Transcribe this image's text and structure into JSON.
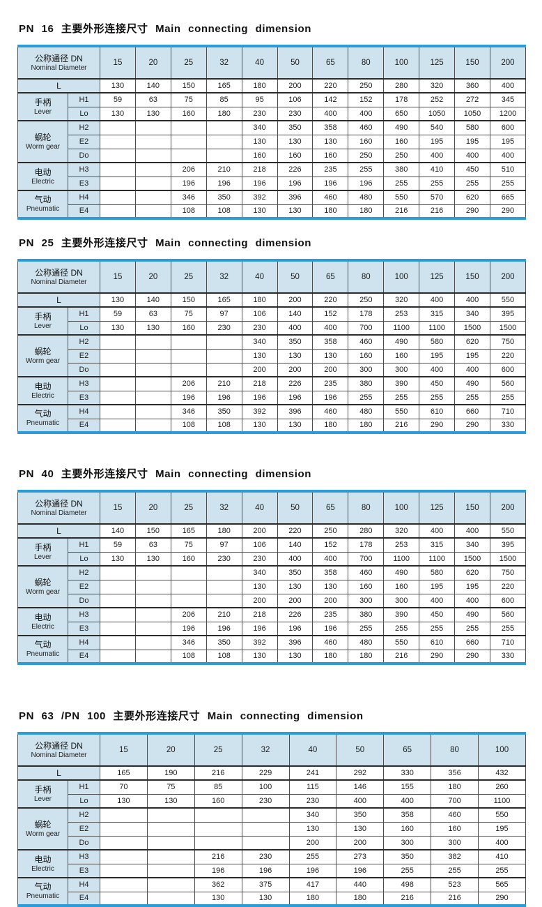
{
  "colors": {
    "accent_rule": "#2b9cd8",
    "header_fill": "#cfe3ee",
    "grid_line": "#4d4d4d",
    "text": "#141414"
  },
  "row_labels": {
    "dn_cn": "公称通径 DN",
    "dn_en": "Nominal Diameter",
    "l_label": "L",
    "groups": [
      {
        "cn": "手柄",
        "en": "Lever",
        "rows": [
          "H1",
          "Lo"
        ]
      },
      {
        "cn": "蜗轮",
        "en": "Worm gear",
        "rows": [
          "H2",
          "E2",
          "Do"
        ]
      },
      {
        "cn": "电动",
        "en": "Electric",
        "rows": [
          "H3",
          "E3"
        ]
      },
      {
        "cn": "气动",
        "en": "Pneumatic",
        "rows": [
          "H4",
          "E4"
        ]
      }
    ]
  },
  "tables": [
    {
      "title": "PN 16 主要外形连接尺寸 Main connecting dimension",
      "dn": [
        "15",
        "20",
        "25",
        "32",
        "40",
        "50",
        "65",
        "80",
        "100",
        "125",
        "150",
        "200"
      ],
      "rows": {
        "L": [
          "130",
          "140",
          "150",
          "165",
          "180",
          "200",
          "220",
          "250",
          "280",
          "320",
          "360",
          "400"
        ],
        "H1": [
          "59",
          "63",
          "75",
          "85",
          "95",
          "106",
          "142",
          "152",
          "178",
          "252",
          "272",
          "345"
        ],
        "Lo": [
          "130",
          "130",
          "160",
          "180",
          "230",
          "230",
          "400",
          "400",
          "650",
          "1050",
          "1050",
          "1200"
        ],
        "H2": [
          "",
          "",
          "",
          "",
          "340",
          "350",
          "358",
          "460",
          "490",
          "540",
          "580",
          "600"
        ],
        "E2": [
          "",
          "",
          "",
          "",
          "130",
          "130",
          "130",
          "160",
          "160",
          "195",
          "195",
          "195"
        ],
        "Do": [
          "",
          "",
          "",
          "",
          "160",
          "160",
          "160",
          "250",
          "250",
          "400",
          "400",
          "400"
        ],
        "H3": [
          "",
          "",
          "206",
          "210",
          "218",
          "226",
          "235",
          "255",
          "380",
          "410",
          "450",
          "510"
        ],
        "E3": [
          "",
          "",
          "196",
          "196",
          "196",
          "196",
          "196",
          "196",
          "255",
          "255",
          "255",
          "255"
        ],
        "H4": [
          "",
          "",
          "346",
          "350",
          "392",
          "396",
          "460",
          "480",
          "550",
          "570",
          "620",
          "665"
        ],
        "E4": [
          "",
          "",
          "108",
          "108",
          "130",
          "130",
          "180",
          "180",
          "216",
          "216",
          "290",
          "290"
        ]
      }
    },
    {
      "title": "PN 25 主要外形连接尺寸 Main connecting dimension",
      "dn": [
        "15",
        "20",
        "25",
        "32",
        "40",
        "50",
        "65",
        "80",
        "100",
        "125",
        "150",
        "200"
      ],
      "rows": {
        "L": [
          "130",
          "140",
          "150",
          "165",
          "180",
          "200",
          "220",
          "250",
          "320",
          "400",
          "400",
          "550"
        ],
        "H1": [
          "59",
          "63",
          "75",
          "97",
          "106",
          "140",
          "152",
          "178",
          "253",
          "315",
          "340",
          "395"
        ],
        "Lo": [
          "130",
          "130",
          "160",
          "230",
          "230",
          "400",
          "400",
          "700",
          "1100",
          "1100",
          "1500",
          "1500"
        ],
        "H2": [
          "",
          "",
          "",
          "",
          "340",
          "350",
          "358",
          "460",
          "490",
          "580",
          "620",
          "750"
        ],
        "E2": [
          "",
          "",
          "",
          "",
          "130",
          "130",
          "130",
          "160",
          "160",
          "195",
          "195",
          "220"
        ],
        "Do": [
          "",
          "",
          "",
          "",
          "200",
          "200",
          "200",
          "300",
          "300",
          "400",
          "400",
          "600"
        ],
        "H3": [
          "",
          "",
          "206",
          "210",
          "218",
          "226",
          "235",
          "380",
          "390",
          "450",
          "490",
          "560"
        ],
        "E3": [
          "",
          "",
          "196",
          "196",
          "196",
          "196",
          "196",
          "255",
          "255",
          "255",
          "255",
          "255"
        ],
        "H4": [
          "",
          "",
          "346",
          "350",
          "392",
          "396",
          "460",
          "480",
          "550",
          "610",
          "660",
          "710"
        ],
        "E4": [
          "",
          "",
          "108",
          "108",
          "130",
          "130",
          "180",
          "180",
          "216",
          "290",
          "290",
          "330"
        ]
      }
    },
    {
      "title": "PN 40 主要外形连接尺寸 Main connecting dimension",
      "dn": [
        "15",
        "20",
        "25",
        "32",
        "40",
        "50",
        "65",
        "80",
        "100",
        "125",
        "150",
        "200"
      ],
      "rows": {
        "L": [
          "140",
          "150",
          "165",
          "180",
          "200",
          "220",
          "250",
          "280",
          "320",
          "400",
          "400",
          "550"
        ],
        "H1": [
          "59",
          "63",
          "75",
          "97",
          "106",
          "140",
          "152",
          "178",
          "253",
          "315",
          "340",
          "395"
        ],
        "Lo": [
          "130",
          "130",
          "160",
          "230",
          "230",
          "400",
          "400",
          "700",
          "1100",
          "1100",
          "1500",
          "1500"
        ],
        "H2": [
          "",
          "",
          "",
          "",
          "340",
          "350",
          "358",
          "460",
          "490",
          "580",
          "620",
          "750"
        ],
        "E2": [
          "",
          "",
          "",
          "",
          "130",
          "130",
          "130",
          "160",
          "160",
          "195",
          "195",
          "220"
        ],
        "Do": [
          "",
          "",
          "",
          "",
          "200",
          "200",
          "200",
          "300",
          "300",
          "400",
          "400",
          "600"
        ],
        "H3": [
          "",
          "",
          "206",
          "210",
          "218",
          "226",
          "235",
          "380",
          "390",
          "450",
          "490",
          "560"
        ],
        "E3": [
          "",
          "",
          "196",
          "196",
          "196",
          "196",
          "196",
          "255",
          "255",
          "255",
          "255",
          "255"
        ],
        "H4": [
          "",
          "",
          "346",
          "350",
          "392",
          "396",
          "460",
          "480",
          "550",
          "610",
          "660",
          "710"
        ],
        "E4": [
          "",
          "",
          "108",
          "108",
          "130",
          "130",
          "180",
          "180",
          "216",
          "290",
          "290",
          "330"
        ]
      }
    },
    {
      "title": "PN 63 /PN 100 主要外形连接尺寸 Main connecting dimension",
      "dn": [
        "15",
        "20",
        "25",
        "32",
        "40",
        "50",
        "65",
        "80",
        "100"
      ],
      "rows": {
        "L": [
          "165",
          "190",
          "216",
          "229",
          "241",
          "292",
          "330",
          "356",
          "432"
        ],
        "H1": [
          "70",
          "75",
          "85",
          "100",
          "115",
          "146",
          "155",
          "180",
          "260"
        ],
        "Lo": [
          "130",
          "130",
          "160",
          "230",
          "230",
          "400",
          "400",
          "700",
          "1100"
        ],
        "H2": [
          "",
          "",
          "",
          "",
          "340",
          "350",
          "358",
          "460",
          "550"
        ],
        "E2": [
          "",
          "",
          "",
          "",
          "130",
          "130",
          "160",
          "160",
          "195"
        ],
        "Do": [
          "",
          "",
          "",
          "",
          "200",
          "200",
          "300",
          "300",
          "400"
        ],
        "H3": [
          "",
          "",
          "216",
          "230",
          "255",
          "273",
          "350",
          "382",
          "410"
        ],
        "E3": [
          "",
          "",
          "196",
          "196",
          "196",
          "196",
          "255",
          "255",
          "255"
        ],
        "H4": [
          "",
          "",
          "362",
          "375",
          "417",
          "440",
          "498",
          "523",
          "565"
        ],
        "E4": [
          "",
          "",
          "130",
          "130",
          "180",
          "180",
          "216",
          "216",
          "290"
        ]
      }
    }
  ]
}
